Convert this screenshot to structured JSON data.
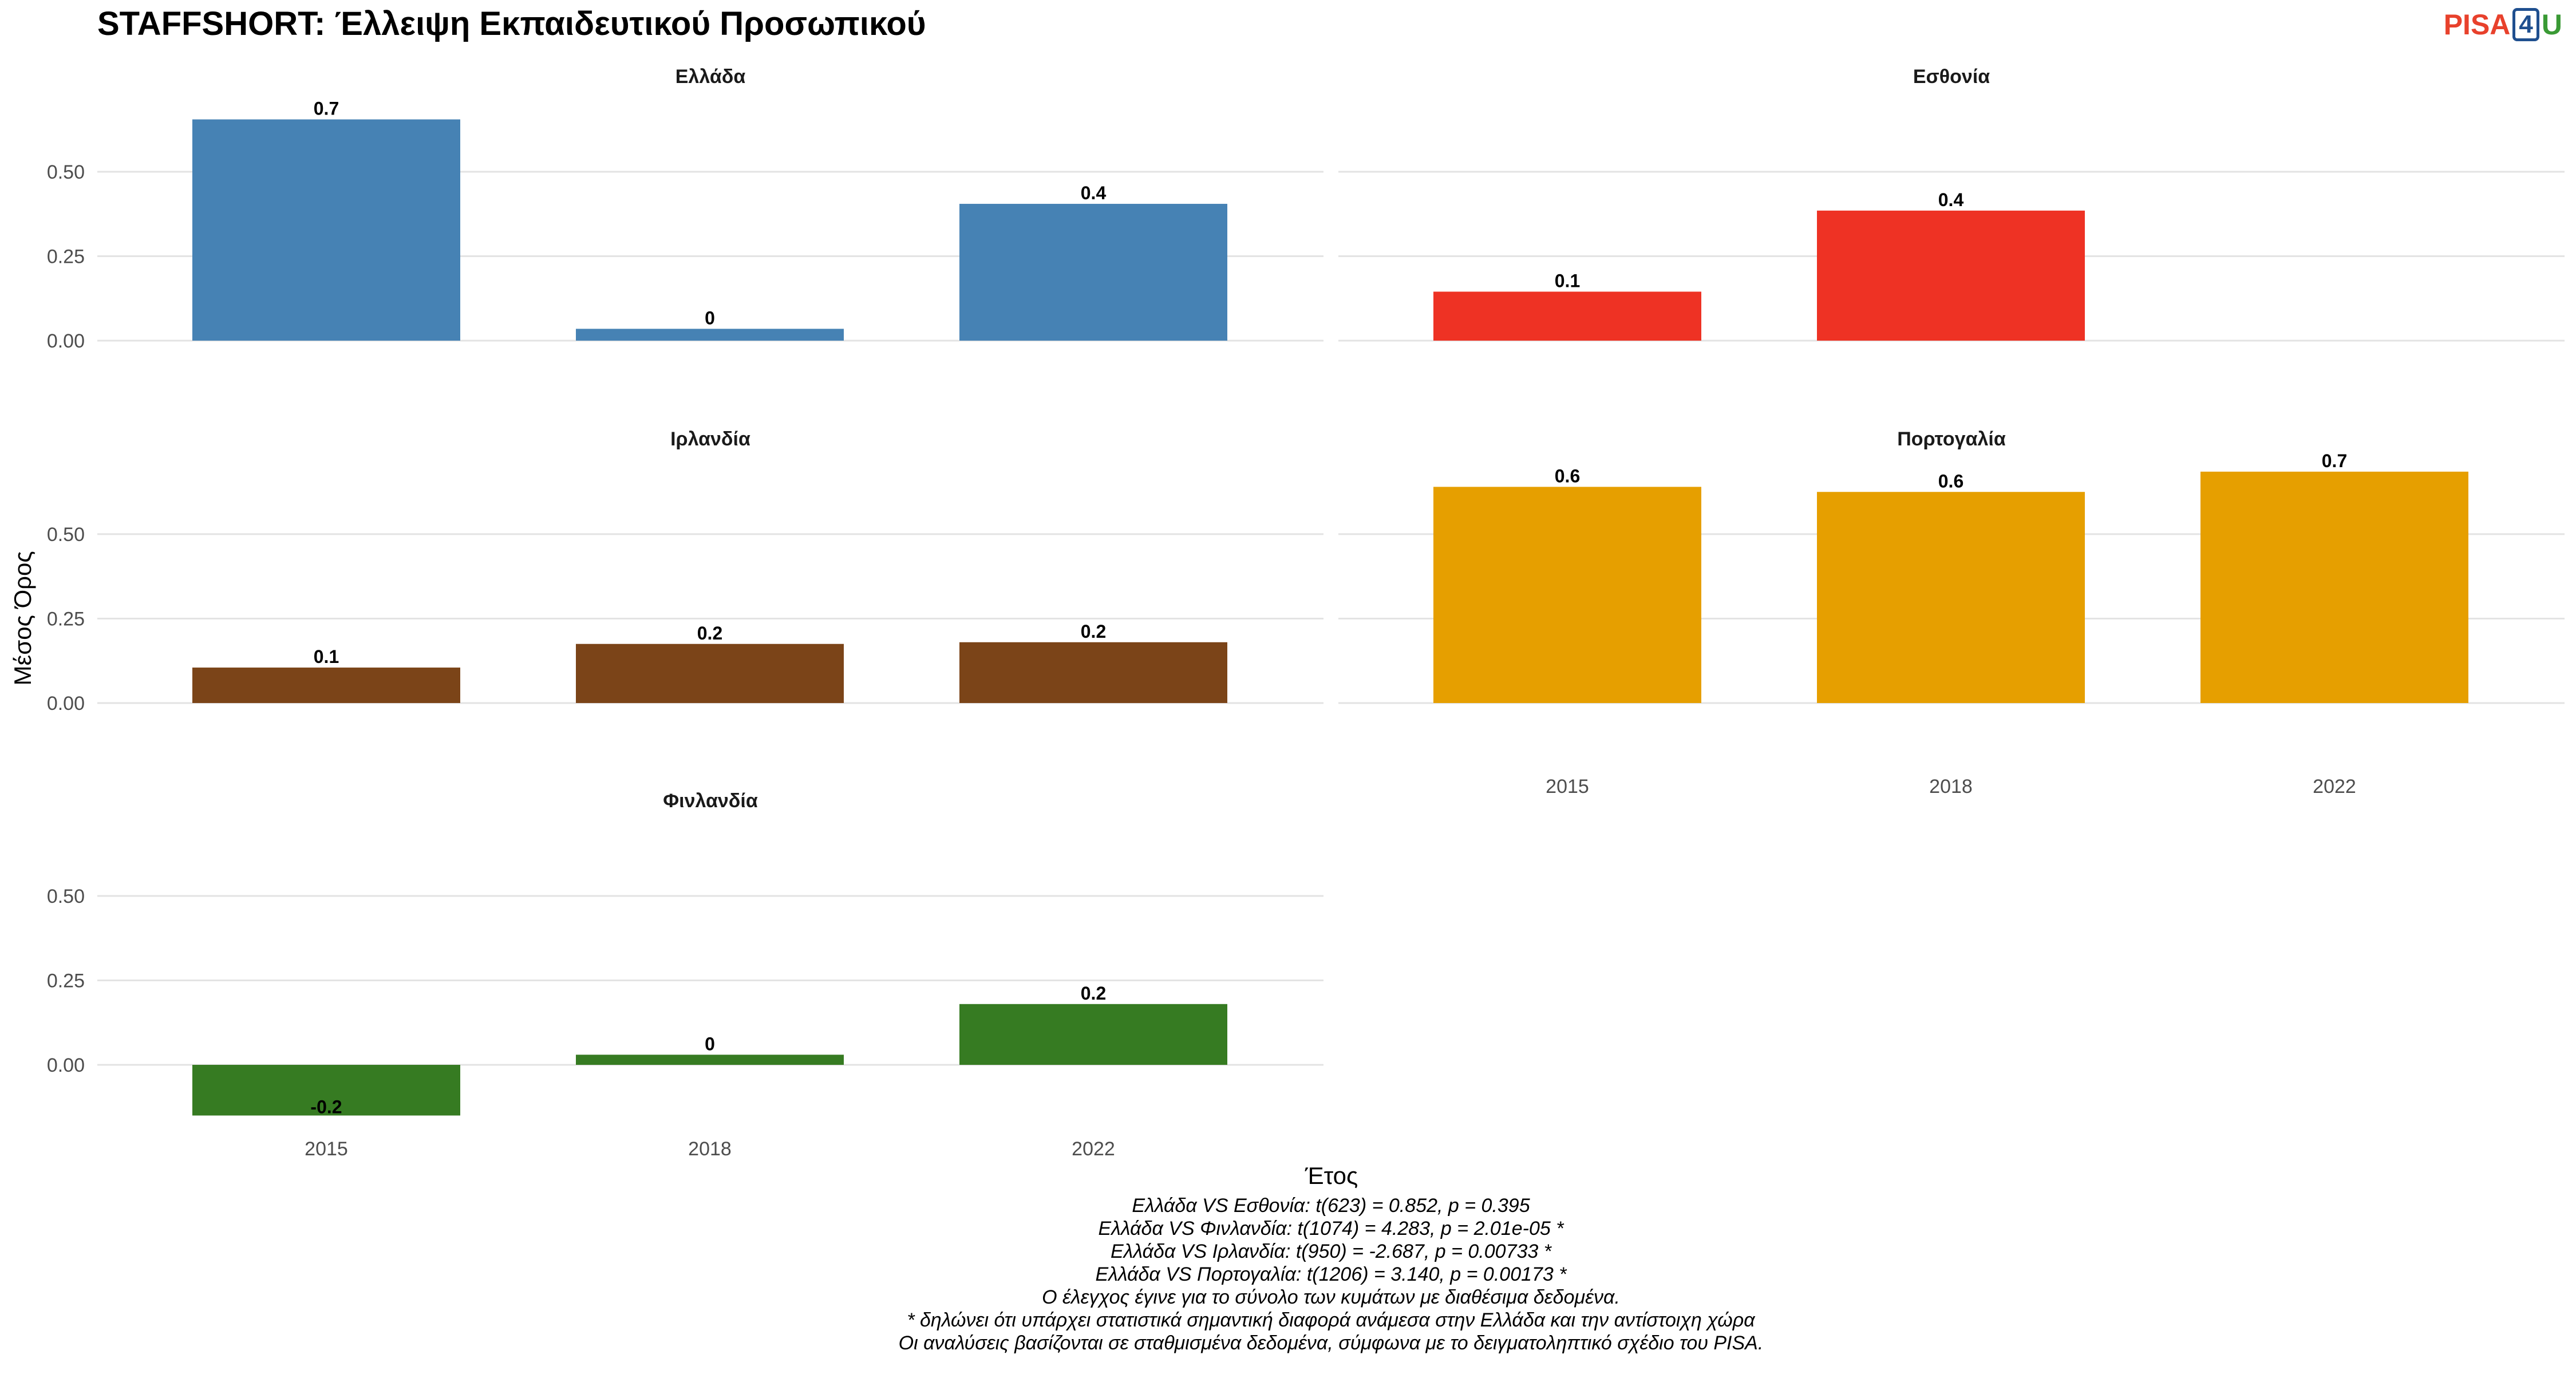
{
  "title": "STAFFSHORT: Έλλειψη Εκπαιδευτικού Προσωπικού",
  "logo": {
    "part1": "PISA",
    "part2": "4",
    "part3": "U"
  },
  "chart_data": {
    "type": "bar",
    "xlabel": "Έτος",
    "ylabel": "Μέσος Όρος",
    "categories": [
      "2015",
      "2018",
      "2022"
    ],
    "yticks": [
      0.0,
      0.25,
      0.5
    ],
    "ytick_labels": [
      "0.00",
      "0.25",
      "0.50"
    ],
    "ylim": [
      -0.17,
      0.68
    ],
    "grid": true,
    "panels": [
      {
        "name": "Ελλάδα",
        "color": "#4682b4",
        "values": [
          0.655,
          0.035,
          0.405
        ],
        "labels": [
          "0.7",
          "0",
          "0.4"
        ]
      },
      {
        "name": "Εσθονία",
        "color": "#ee3224",
        "values": [
          0.145,
          0.385,
          null
        ],
        "labels": [
          "0.1",
          "0.4",
          ""
        ]
      },
      {
        "name": "Ιρλανδία",
        "color": "#7b4418",
        "values": [
          0.105,
          0.175,
          0.18
        ],
        "labels": [
          "0.1",
          "0.2",
          "0.2"
        ]
      },
      {
        "name": "Πορτογαλία",
        "color": "#e69f00",
        "values": [
          0.64,
          0.625,
          0.685
        ],
        "labels": [
          "0.6",
          "0.6",
          "0.7"
        ]
      },
      {
        "name": "Φινλανδία",
        "color": "#367b22",
        "values": [
          -0.15,
          0.03,
          0.18
        ],
        "labels": [
          "-0.2",
          "0",
          "0.2"
        ]
      }
    ]
  },
  "caption": [
    "Ελλάδα VS Εσθονία: t(623) = 0.852, p = 0.395",
    "Ελλάδα VS Φινλανδία: t(1074) = 4.283, p = 2.01e-05 *",
    "Ελλάδα VS Ιρλανδία: t(950) = -2.687, p = 0.00733 *",
    "Ελλάδα VS Πορτογαλία: t(1206) = 3.140, p = 0.00173 *",
    "Ο έλεγχος έγινε για το σύνολο των κυμάτων με διαθέσιμα δεδομένα.",
    "* δηλώνει ότι υπάρχει στατιστικά σημαντική διαφορά ανάμεσα στην Ελλάδα και την αντίστοιχη χώρα",
    "Οι αναλύσεις βασίζονται σε σταθμισμένα δεδομένα, σύμφωνα με το δειγματοληπτικό σχέδιο του PISA."
  ]
}
